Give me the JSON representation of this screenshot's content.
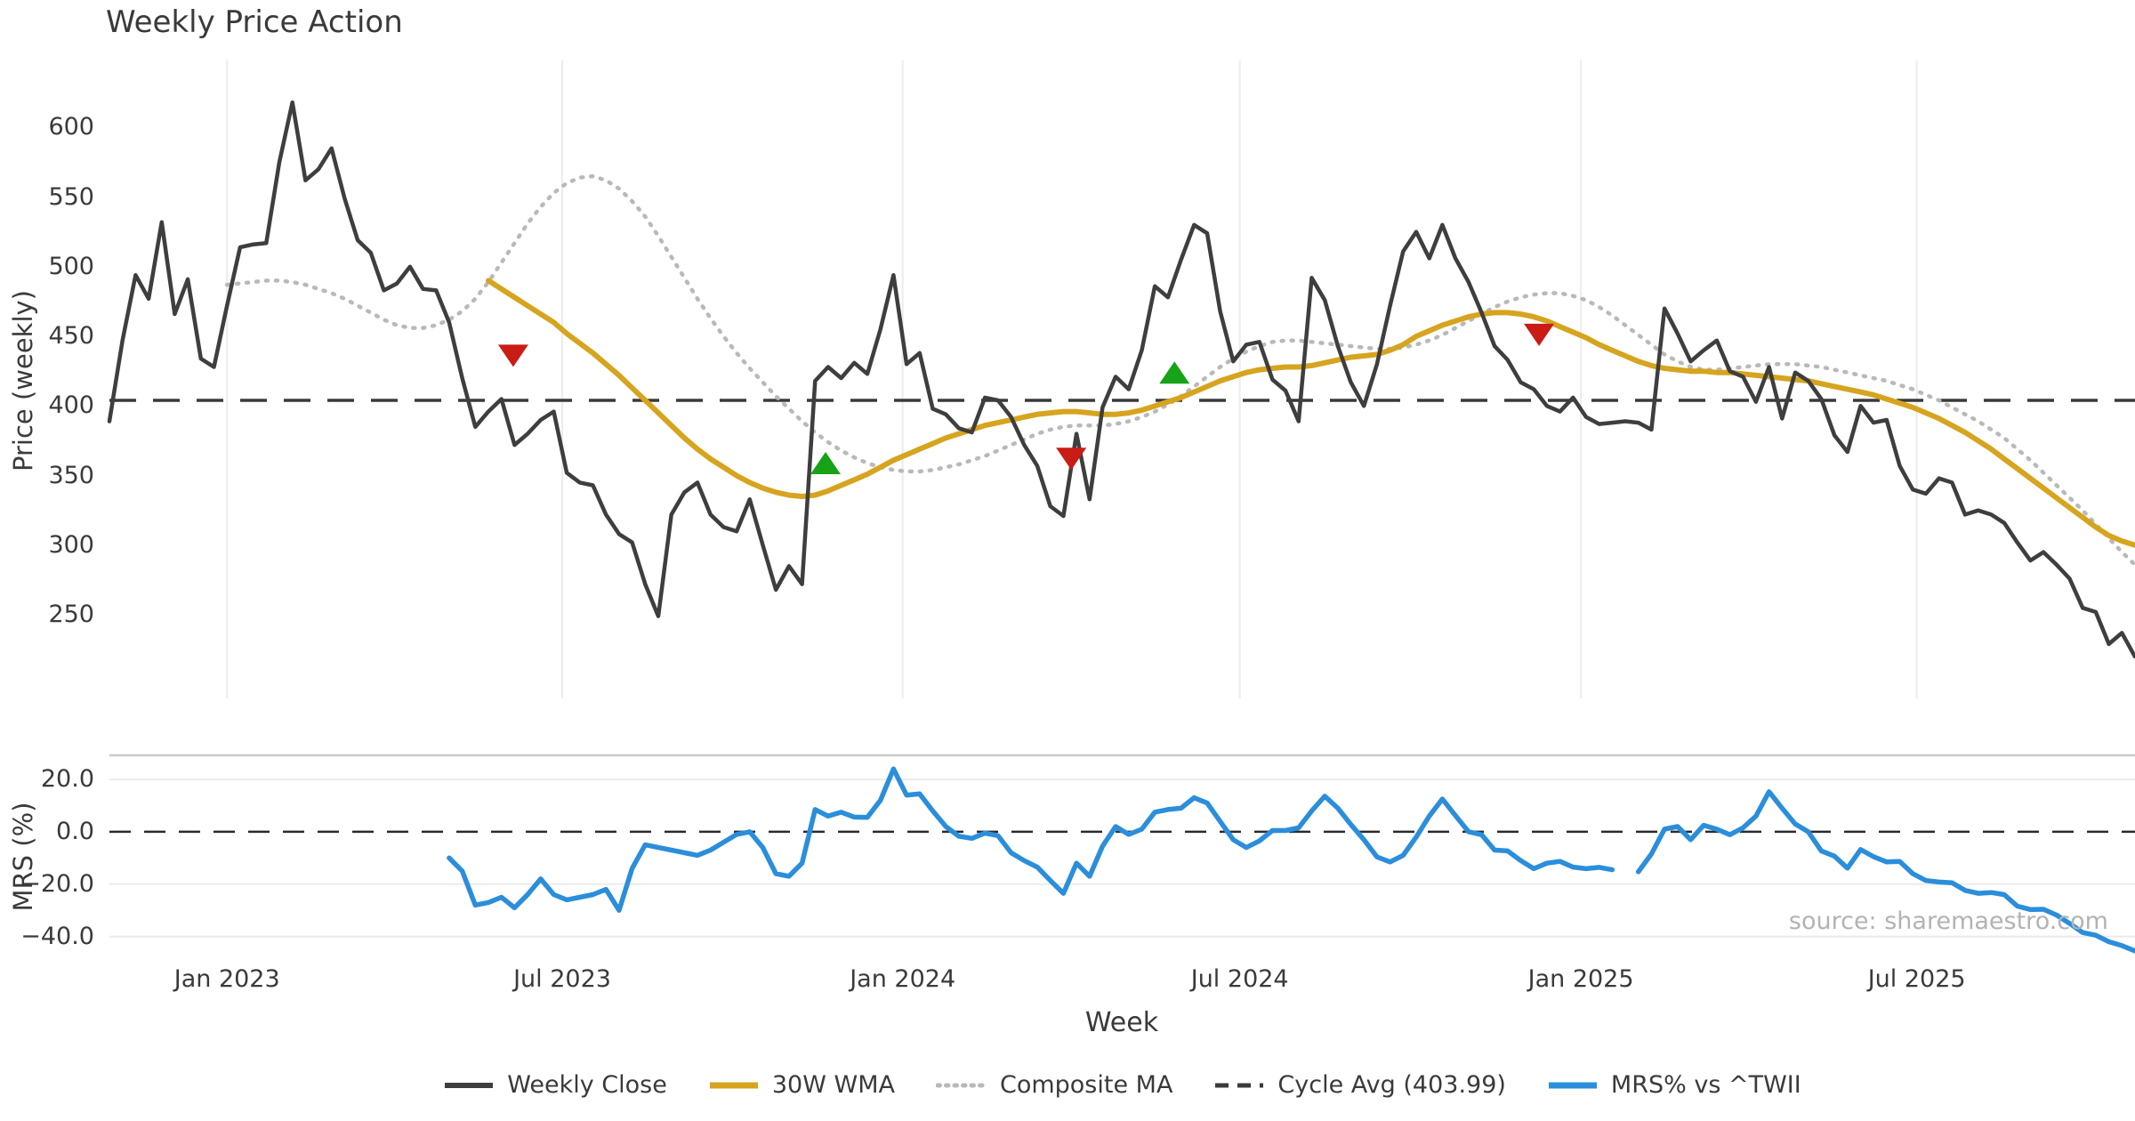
{
  "page": {
    "title": "Weekly Price Action"
  },
  "axes": {
    "price": {
      "label": "Price (weekly)",
      "ticks": [
        "600",
        "550",
        "500",
        "450",
        "400",
        "350",
        "300",
        "250"
      ]
    },
    "mrs": {
      "label": "MRS (%)",
      "ticks": [
        "20.0",
        "0.0",
        "−20.0",
        "−40.0"
      ]
    },
    "x": {
      "label": "Week",
      "ticks": [
        "Jan 2023",
        "Jul 2023",
        "Jan 2024",
        "Jul 2024",
        "Jan 2025",
        "Jul 2025"
      ]
    }
  },
  "legend": {
    "items": [
      {
        "key": "weekly_close",
        "label": "Weekly Close"
      },
      {
        "key": "wma",
        "label": "30W WMA"
      },
      {
        "key": "composite",
        "label": "Composite MA"
      },
      {
        "key": "cycle",
        "label": "Cycle Avg (403.99)"
      },
      {
        "key": "mrs",
        "label": "MRS% vs ^TWII"
      }
    ]
  },
  "source_note": "source: sharemaestro.com",
  "colors": {
    "text": "#3a3a3a",
    "weekly_close": "#3e3e3e",
    "wma": "#d6a41e",
    "composite": "#b9b9b9",
    "cycle": "#3a3a3a",
    "mrs_line": "#2b8edb",
    "sell_marker": "#c81c15",
    "buy_marker": "#17a317",
    "grid_vertical": "#ececec",
    "grid_mrs": "#ebebeb",
    "mrs_top_spine": "#c9c9c9",
    "zero_dash": "#2b2b2b"
  },
  "chart_data": {
    "type": "line",
    "title": "Weekly Price Action",
    "xlabel": "Week",
    "x_axis": {
      "unit": "week_index",
      "range": [
        0,
        155
      ],
      "tick_positions": [
        9,
        34.65,
        60.7,
        86.5,
        112.6,
        138.3
      ],
      "tick_labels": [
        "Jan 2023",
        "Jul 2023",
        "Jan 2024",
        "Jul 2024",
        "Jan 2025",
        "Jul 2025"
      ]
    },
    "price_panel": {
      "ylabel": "Price (weekly)",
      "yticks": [
        600,
        550,
        500,
        450,
        400,
        350,
        300,
        250
      ],
      "ylim": [
        190,
        650
      ],
      "grid": "vertical-only",
      "cycle_avg": 403.99
    },
    "mrs_panel": {
      "ylabel": "MRS (%)",
      "yticks": [
        20.0,
        0.0,
        -20.0,
        -40.0
      ],
      "ylim": [
        -51,
        29.2
      ],
      "grid": "horizontal",
      "zero_line": 0.0
    },
    "legend_position": "bottom-center",
    "series": {
      "weekly_close": {
        "name": "Weekly Close",
        "start_week": 0,
        "values": [
          389,
          447,
          494,
          477,
          532,
          466,
          491,
          434,
          428,
          472,
          514,
          516,
          517,
          575,
          618,
          562,
          570,
          585,
          549,
          519,
          510,
          483,
          488,
          500,
          484,
          483,
          460,
          420,
          385,
          396,
          405,
          372,
          380,
          390,
          396,
          352,
          345,
          343,
          322,
          308,
          302,
          272,
          249,
          322,
          338,
          345,
          322,
          313,
          310,
          333,
          300,
          268,
          285,
          272,
          418,
          428,
          420,
          431,
          423,
          455,
          494,
          430,
          438,
          398,
          394,
          384,
          381,
          406,
          404,
          392,
          372,
          357,
          328,
          321,
          380,
          333,
          399,
          421,
          412,
          440,
          486,
          478,
          505,
          530,
          524,
          468,
          432,
          444,
          446,
          419,
          411,
          389,
          492,
          476,
          443,
          417,
          400,
          430,
          472,
          511,
          525,
          506,
          530,
          506,
          489,
          467,
          443,
          433,
          417,
          412,
          400,
          396,
          406,
          392,
          387,
          388,
          389,
          388,
          383,
          470,
          452,
          432,
          440,
          447,
          425,
          421,
          403,
          428,
          391,
          424,
          418,
          405,
          379,
          367,
          400,
          388,
          390,
          357,
          340,
          337,
          348,
          345,
          322,
          325,
          322,
          316,
          302,
          289,
          295,
          286,
          276,
          255,
          252,
          229,
          237,
          220
        ]
      },
      "wma_30w": {
        "name": "30W WMA",
        "start_week": 29,
        "values": [
          490,
          484,
          478,
          472,
          466,
          460,
          452,
          445,
          438,
          430,
          422,
          413,
          404,
          395,
          386,
          377,
          369,
          362,
          356,
          350,
          345,
          341,
          338,
          336,
          335,
          336,
          339,
          343,
          347,
          351,
          356,
          361,
          365,
          369,
          373,
          377,
          380,
          383,
          386,
          388,
          390,
          392,
          394,
          395,
          396,
          396,
          395,
          394,
          394,
          395,
          397,
          400,
          403,
          406,
          410,
          414,
          418,
          421,
          424,
          426,
          427,
          428,
          428,
          429,
          431,
          433,
          435,
          436,
          437,
          440,
          444,
          450,
          454,
          458,
          461,
          464,
          466,
          467,
          467,
          466,
          464,
          461,
          457,
          453,
          449,
          444,
          440,
          436,
          432,
          429,
          427,
          426,
          425,
          425,
          424,
          424,
          423,
          422,
          421,
          420,
          419,
          418,
          416,
          414,
          412,
          410,
          408,
          405,
          402,
          399,
          395,
          391,
          386,
          381,
          375,
          369,
          362,
          355,
          348,
          341,
          334,
          327,
          320,
          313,
          307,
          303,
          300
        ]
      },
      "composite_ma": {
        "name": "Composite MA",
        "start_week": 9,
        "values": [
          487,
          488,
          489,
          490,
          490,
          489,
          487,
          484,
          481,
          477,
          472,
          467,
          462,
          458,
          456,
          456,
          458,
          462,
          468,
          477,
          489,
          503,
          517,
          531,
          543,
          553,
          560,
          564,
          565,
          562,
          556,
          547,
          536,
          522,
          507,
          492,
          477,
          463,
          450,
          438,
          427,
          417,
          407,
          398,
          389,
          381,
          374,
          368,
          363,
          359,
          356,
          354,
          353,
          353,
          354,
          356,
          358,
          361,
          364,
          368,
          372,
          376,
          380,
          383,
          385,
          386,
          386,
          386,
          387,
          389,
          392,
          396,
          401,
          407,
          414,
          421,
          428,
          434,
          439,
          443,
          446,
          447,
          447,
          446,
          445,
          444,
          443,
          442,
          441,
          441,
          442,
          444,
          447,
          451,
          456,
          461,
          466,
          471,
          475,
          478,
          480,
          481,
          481,
          479,
          476,
          471,
          465,
          458,
          451,
          444,
          437,
          432,
          428,
          426,
          426,
          427,
          428,
          429,
          430,
          430,
          430,
          429,
          428,
          426,
          424,
          422,
          420,
          418,
          415,
          412,
          408,
          404,
          399,
          394,
          389,
          383,
          377,
          369,
          361,
          352,
          343,
          334,
          325,
          315,
          305,
          295,
          286
        ]
      },
      "mrs_pct": {
        "name": "MRS% vs ^TWII",
        "start_week": 26,
        "values": [
          -10,
          -15,
          -28,
          -27,
          -25,
          -29,
          -24,
          -18,
          -24,
          -26,
          -25,
          -24,
          -22,
          -30,
          -14,
          -5,
          -6,
          -7,
          -8,
          -9,
          -7,
          -4,
          -1,
          0,
          -6,
          -16,
          -17,
          -12,
          8.5,
          6,
          7.5,
          5.6,
          5.5,
          12,
          24,
          14,
          14.5,
          8,
          2,
          -1.7,
          -2.5,
          -0.5,
          -1.5,
          -8,
          -11,
          -13.5,
          -18.6,
          -23.5,
          -12,
          -17,
          -5.5,
          2,
          -1,
          1,
          7.5,
          8.5,
          9,
          13,
          11,
          4,
          -3,
          -6,
          -3.5,
          0.5,
          0.5,
          1.5,
          8,
          13.6,
          9,
          2.8,
          -3,
          -9.6,
          -11.5,
          -9,
          -2,
          6,
          12.5,
          6.2,
          0,
          -1.1,
          -7,
          -7.3,
          -11,
          -14.1,
          -12,
          -11.3,
          -13.5,
          -14.1,
          -13.6,
          -14.5,
          null,
          -15.3,
          -8.5,
          1,
          2,
          -3,
          2.5,
          1,
          -1.1,
          1.5,
          6,
          15.3,
          9,
          3,
          0,
          -7.3,
          -9.3,
          -13.9,
          -6.8,
          -9.5,
          -11.5,
          -11.3,
          -16,
          -18.6,
          -19.2,
          -19.5,
          -22.4,
          -23.5,
          -23.2,
          -24,
          -28.4,
          -29.7,
          -29.6,
          -31.8,
          -35,
          -38.5,
          -39.5,
          -42,
          -43.5,
          -45.5
        ]
      }
    },
    "markers": {
      "sell": [
        {
          "x": 30.9,
          "y": 437
        },
        {
          "x": 73.6,
          "y": 363
        },
        {
          "x": 109.4,
          "y": 452
        }
      ],
      "buy": [
        {
          "x": 54.8,
          "y": 358
        },
        {
          "x": 81.5,
          "y": 423
        }
      ]
    }
  }
}
